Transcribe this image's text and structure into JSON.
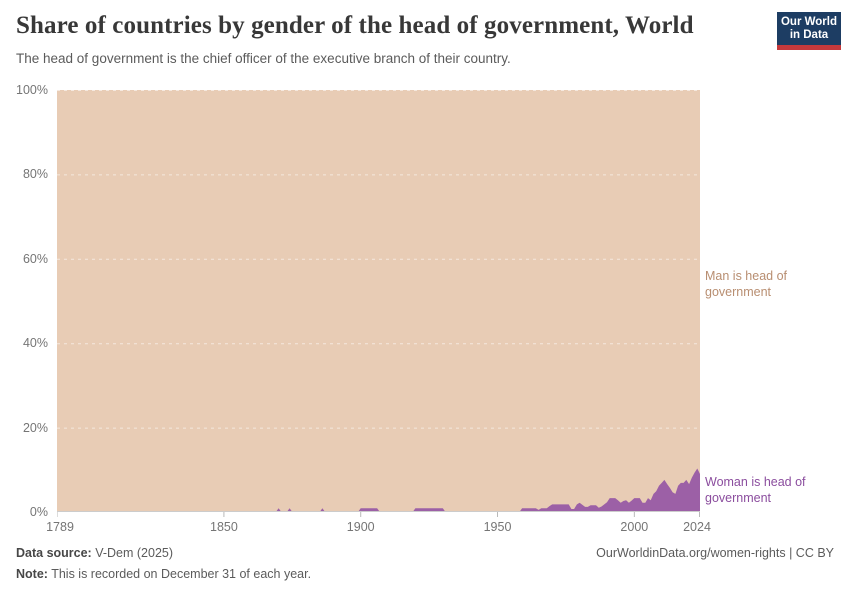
{
  "header": {
    "title": "Share of countries by gender of the head of government, World",
    "subtitle": "The head of government is the chief officer of the executive branch of their country.",
    "logo": {
      "line1": "Our World",
      "line2": "in Data",
      "bg": "#1d3d63",
      "stripe": "#c5393c"
    }
  },
  "chart_data": {
    "type": "area",
    "stacked": true,
    "title": "Share of countries by gender of the head of government, World",
    "unit": "% of countries",
    "x_domain": [
      1789,
      2024
    ],
    "y_domain": [
      0,
      100
    ],
    "grid": "dashed-horizontal",
    "legend_position": "right-edge-labels",
    "x_ticks": [
      {
        "value": 1789,
        "label": "1789"
      },
      {
        "value": 1850,
        "label": "1850"
      },
      {
        "value": 1900,
        "label": "1900"
      },
      {
        "value": 1950,
        "label": "1950"
      },
      {
        "value": 2000,
        "label": "2000"
      },
      {
        "value": 2024,
        "label": "2024"
      }
    ],
    "y_ticks": [
      {
        "value": 0,
        "label": "0%"
      },
      {
        "value": 20,
        "label": "20%"
      },
      {
        "value": 40,
        "label": "40%"
      },
      {
        "value": 60,
        "label": "60%"
      },
      {
        "value": 80,
        "label": "80%"
      },
      {
        "value": 100,
        "label": "100%"
      }
    ],
    "series": [
      {
        "name": "Man is head of government",
        "color": "#e8ccb5",
        "label_color": "#b88e71",
        "definition": "remainder_to_100_percent"
      },
      {
        "name": "Woman is head of government",
        "color": "#9c60a6",
        "label_color": "#8b4d9e",
        "points": [
          [
            1789,
            0
          ],
          [
            1869,
            0
          ],
          [
            1870,
            0.9
          ],
          [
            1871,
            0
          ],
          [
            1873,
            0
          ],
          [
            1874,
            0.9
          ],
          [
            1875,
            0
          ],
          [
            1885,
            0
          ],
          [
            1886,
            0.9
          ],
          [
            1887,
            0
          ],
          [
            1899,
            0
          ],
          [
            1900,
            0.9
          ],
          [
            1906,
            0.9
          ],
          [
            1907,
            0
          ],
          [
            1919,
            0
          ],
          [
            1920,
            0.9
          ],
          [
            1930,
            0.9
          ],
          [
            1931,
            0
          ],
          [
            1958,
            0
          ],
          [
            1959,
            0.9
          ],
          [
            1964,
            0.9
          ],
          [
            1965,
            0.5
          ],
          [
            1966,
            0.9
          ],
          [
            1968,
            0.9
          ],
          [
            1969,
            1.4
          ],
          [
            1970,
            1.8
          ],
          [
            1976,
            1.8
          ],
          [
            1977,
            0.7
          ],
          [
            1978,
            0.7
          ],
          [
            1979,
            1.8
          ],
          [
            1980,
            2.2
          ],
          [
            1982,
            1.2
          ],
          [
            1983,
            1.2
          ],
          [
            1984,
            1.6
          ],
          [
            1986,
            1.6
          ],
          [
            1987,
            1.0
          ],
          [
            1988,
            1.3
          ],
          [
            1990,
            2.3
          ],
          [
            1991,
            3.3
          ],
          [
            1993,
            3.3
          ],
          [
            1994,
            2.8
          ],
          [
            1995,
            2.2
          ],
          [
            1996,
            2.6
          ],
          [
            1997,
            2.8
          ],
          [
            1998,
            2.2
          ],
          [
            1999,
            2.7
          ],
          [
            2000,
            3.3
          ],
          [
            2002,
            3.3
          ],
          [
            2003,
            2.2
          ],
          [
            2004,
            2.2
          ],
          [
            2005,
            3.3
          ],
          [
            2006,
            2.8
          ],
          [
            2007,
            4.3
          ],
          [
            2008,
            4.9
          ],
          [
            2009,
            6.2
          ],
          [
            2010,
            6.9
          ],
          [
            2011,
            7.6
          ],
          [
            2012,
            6.6
          ],
          [
            2013,
            5.7
          ],
          [
            2014,
            4.7
          ],
          [
            2015,
            4.3
          ],
          [
            2016,
            6.2
          ],
          [
            2017,
            6.9
          ],
          [
            2018,
            6.9
          ],
          [
            2019,
            7.6
          ],
          [
            2020,
            6.6
          ],
          [
            2021,
            8.1
          ],
          [
            2022,
            9.3
          ],
          [
            2023,
            10.3
          ],
          [
            2024,
            9.0
          ]
        ]
      }
    ],
    "style": {
      "grid_color": "rgba(255,255,255,0.55)",
      "axis_line_color": "#cccccc",
      "tick_color": "#b9b9b9"
    }
  },
  "footer": {
    "source_label": "Data source:",
    "source_value": " V-Dem (2025)",
    "note_label": "Note:",
    "note_value": " This is recorded on December 31 of each year.",
    "link": "OurWorldinData.org/women-rights | CC BY"
  }
}
